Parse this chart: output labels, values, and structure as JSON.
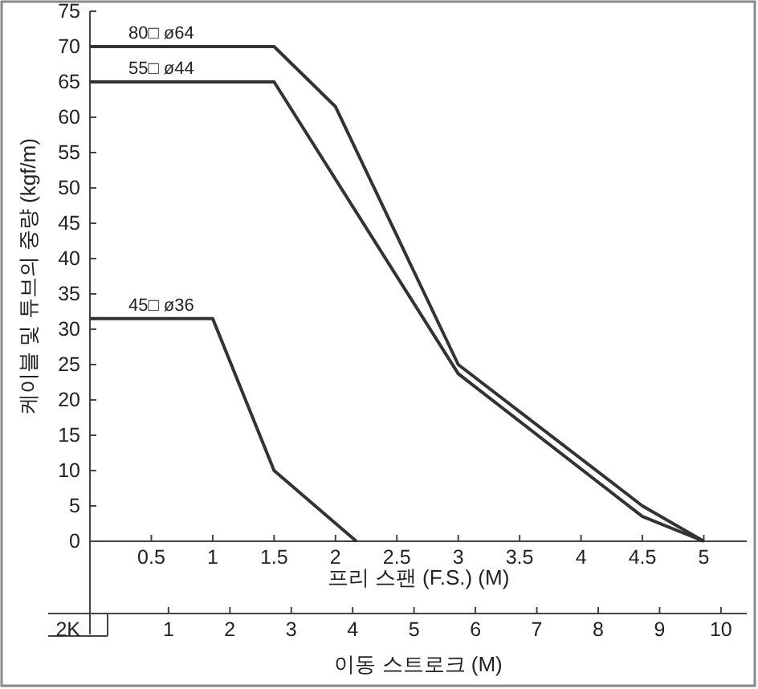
{
  "chart_data": {
    "type": "line",
    "xlabel": "프리 스팬 (F.S.) (M)",
    "ylabel": "케이블 및 튜브의 중량 (kgf/m)",
    "x2label": "이동 스트로크 (M)",
    "xlim": [
      0,
      5.35
    ],
    "xticks": [
      0.5,
      1,
      1.5,
      2,
      2.5,
      3,
      3.5,
      4,
      4.5,
      5
    ],
    "ylim": [
      0,
      75
    ],
    "yticks": [
      0,
      5,
      10,
      15,
      20,
      25,
      30,
      35,
      40,
      45,
      50,
      55,
      60,
      65,
      70,
      75
    ],
    "x2lim": [
      -0.28,
      10.42
    ],
    "x2ticks": [
      1,
      2,
      3,
      4,
      5,
      6,
      7,
      8,
      9,
      10
    ],
    "annotations": [
      "2K"
    ],
    "grid": false,
    "legend": false,
    "marker": "none",
    "line_style": "solid",
    "series": [
      {
        "name": "80□ ø64",
        "color": "#333333",
        "x": [
          0,
          1.5,
          2,
          3,
          4.5,
          5
        ],
        "values": [
          70,
          70,
          61.5,
          25,
          5,
          0
        ]
      },
      {
        "name": "55□ ø44",
        "color": "#333333",
        "x": [
          0,
          1.5,
          3,
          4.5,
          5
        ],
        "values": [
          65,
          65,
          23.7,
          3.5,
          0
        ]
      },
      {
        "name": "45□ ø36",
        "color": "#333333",
        "x": [
          0,
          1,
          1.5,
          2.17
        ],
        "values": [
          31.5,
          31.5,
          10,
          0
        ]
      }
    ]
  }
}
